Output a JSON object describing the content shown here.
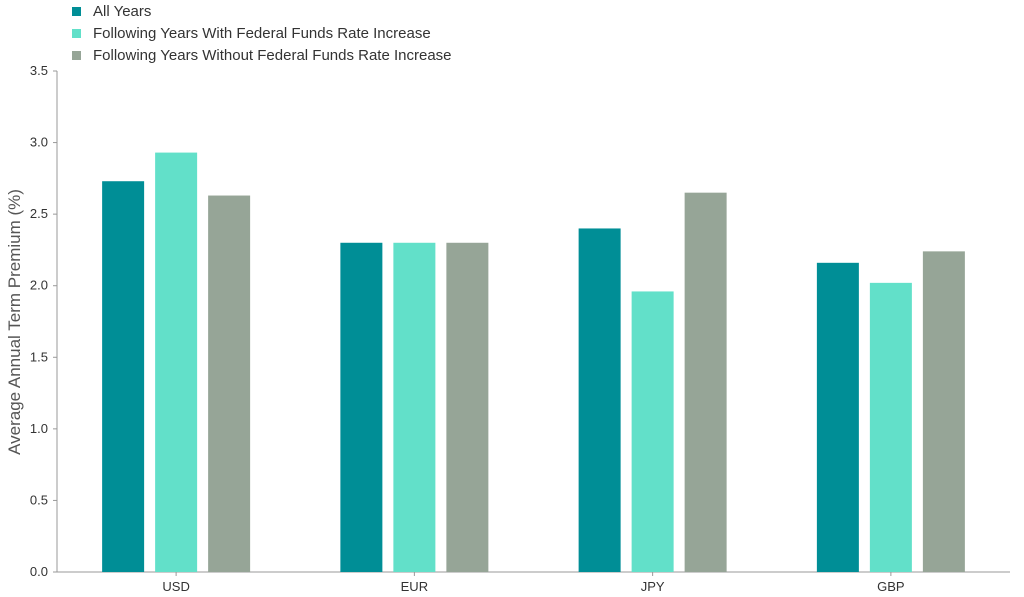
{
  "chart_data": {
    "type": "bar",
    "title": "",
    "xlabel": "",
    "ylabel": "Average Annual Term Premium (%)",
    "ylim": [
      0,
      3.5
    ],
    "yticks": [
      "0.0",
      "0.5",
      "1.0",
      "1.5",
      "2.0",
      "2.5",
      "3.0",
      "3.5"
    ],
    "grid": false,
    "legend_position": "top-left",
    "categories": [
      "USD",
      "EUR",
      "JPY",
      "GBP"
    ],
    "series": [
      {
        "name": "All Years",
        "color": "#008e96",
        "values": [
          2.73,
          2.3,
          2.4,
          2.16
        ]
      },
      {
        "name": "Following Years With Federal Funds Rate Increase",
        "color": "#62e0c9",
        "values": [
          2.93,
          2.3,
          1.96,
          2.02
        ]
      },
      {
        "name": "Following Years Without Federal Funds Rate Increase",
        "color": "#96a597",
        "values": [
          2.63,
          2.3,
          2.65,
          2.24
        ]
      }
    ]
  }
}
